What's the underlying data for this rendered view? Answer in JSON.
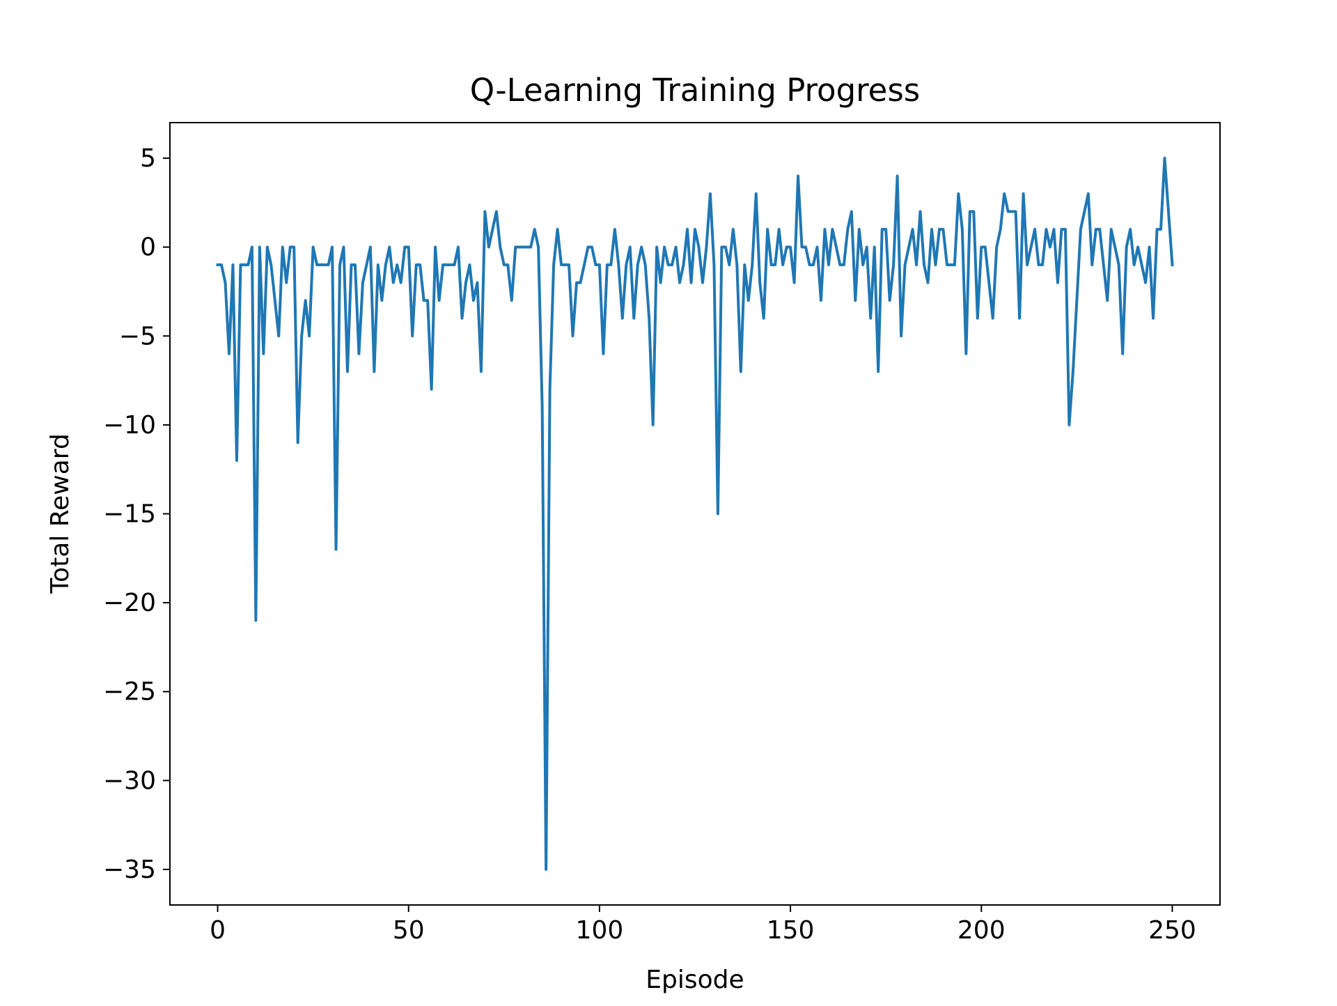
{
  "chart_data": {
    "type": "line",
    "title": "Q-Learning Training Progress",
    "xlabel": "Episode",
    "ylabel": "Total Reward",
    "xlim": [
      -12.5,
      262.5
    ],
    "ylim": [
      -37,
      7
    ],
    "xticks": [
      0,
      50,
      100,
      150,
      200,
      250
    ],
    "xtick_labels": [
      "0",
      "50",
      "100",
      "150",
      "200",
      "250"
    ],
    "yticks": [
      5,
      0,
      -5,
      -10,
      -15,
      -20,
      -25,
      -30,
      -35
    ],
    "ytick_labels": [
      "5",
      "0",
      "−5",
      "−10",
      "−15",
      "−20",
      "−25",
      "−30",
      "−35"
    ],
    "grid": false,
    "legend": "none",
    "series": [
      {
        "color": "#1f77b4",
        "x": [
          0,
          1,
          2,
          3,
          4,
          5,
          6,
          7,
          8,
          9,
          10,
          11,
          12,
          13,
          14,
          15,
          16,
          17,
          18,
          19,
          20,
          21,
          22,
          23,
          24,
          25,
          26,
          27,
          28,
          29,
          30,
          31,
          32,
          33,
          34,
          35,
          36,
          37,
          38,
          39,
          40,
          41,
          42,
          43,
          44,
          45,
          46,
          47,
          48,
          49,
          50,
          51,
          52,
          53,
          54,
          55,
          56,
          57,
          58,
          59,
          60,
          61,
          62,
          63,
          64,
          65,
          66,
          67,
          68,
          69,
          70,
          71,
          72,
          73,
          74,
          75,
          76,
          77,
          78,
          79,
          80,
          81,
          82,
          83,
          84,
          85,
          86,
          87,
          88,
          89,
          90,
          91,
          92,
          93,
          94,
          95,
          96,
          97,
          98,
          99,
          100,
          101,
          102,
          103,
          104,
          105,
          106,
          107,
          108,
          109,
          110,
          111,
          112,
          113,
          114,
          115,
          116,
          117,
          118,
          119,
          120,
          121,
          122,
          123,
          124,
          125,
          126,
          127,
          128,
          129,
          130,
          131,
          132,
          133,
          134,
          135,
          136,
          137,
          138,
          139,
          140,
          141,
          142,
          143,
          144,
          145,
          146,
          147,
          148,
          149,
          150,
          151,
          152,
          153,
          154,
          155,
          156,
          157,
          158,
          159,
          160,
          161,
          162,
          163,
          164,
          165,
          166,
          167,
          168,
          169,
          170,
          171,
          172,
          173,
          174,
          175,
          176,
          177,
          178,
          179,
          180,
          181,
          182,
          183,
          184,
          185,
          186,
          187,
          188,
          189,
          190,
          191,
          192,
          193,
          194,
          195,
          196,
          197,
          198,
          199,
          200,
          201,
          202,
          203,
          204,
          205,
          206,
          207,
          208,
          209,
          210,
          211,
          212,
          213,
          214,
          215,
          216,
          217,
          218,
          219,
          220,
          221,
          222,
          223,
          224,
          225,
          226,
          227,
          228,
          229,
          230,
          231,
          232,
          233,
          234,
          235,
          236,
          237,
          238,
          239,
          240,
          241,
          242,
          243,
          244,
          245,
          246,
          247,
          248,
          249,
          250
        ],
        "y": [
          -1,
          -1,
          -2,
          -6,
          -1,
          -12,
          -1,
          -1,
          -1,
          0,
          -21,
          0,
          -6,
          0,
          -1,
          -3,
          -5,
          0,
          -2,
          0,
          0,
          -11,
          -5,
          -3,
          -5,
          0,
          -1,
          -1,
          -1,
          -1,
          0,
          -17,
          -1,
          0,
          -7,
          -1,
          -1,
          -6,
          -2,
          -1,
          0,
          -7,
          -1,
          -3,
          -1,
          0,
          -2,
          -1,
          -2,
          0,
          0,
          -5,
          -1,
          -1,
          -3,
          -3,
          -8,
          0,
          -3,
          -1,
          -1,
          -1,
          -1,
          0,
          -4,
          -2,
          -1,
          -3,
          -2,
          -7,
          2,
          0,
          1,
          2,
          0,
          -1,
          -1,
          -3,
          0,
          0,
          0,
          0,
          0,
          1,
          0,
          -9,
          -35,
          -8,
          -1,
          1,
          -1,
          -1,
          -1,
          -5,
          -2,
          -2,
          -1,
          0,
          0,
          -1,
          -1,
          -6,
          -1,
          -1,
          1,
          -1,
          -4,
          -1,
          0,
          -4,
          -1,
          0,
          -1,
          -4,
          -10,
          0,
          -2,
          0,
          -1,
          -1,
          0,
          -2,
          -1,
          1,
          -2,
          1,
          0,
          -2,
          0,
          3,
          -1,
          -15,
          0,
          0,
          -1,
          1,
          -1,
          -7,
          -1,
          -3,
          -1,
          3,
          -2,
          -4,
          1,
          -1,
          -1,
          1,
          -1,
          0,
          0,
          -2,
          4,
          0,
          0,
          -1,
          -1,
          0,
          -3,
          1,
          -1,
          1,
          0,
          -1,
          -1,
          1,
          2,
          -3,
          1,
          -1,
          0,
          -4,
          0,
          -7,
          1,
          1,
          -3,
          -1,
          4,
          -5,
          -1,
          0,
          1,
          -1,
          2,
          -1,
          -2,
          1,
          -1,
          1,
          1,
          -1,
          -1,
          -1,
          3,
          1,
          -6,
          2,
          2,
          -4,
          0,
          0,
          -2,
          -4,
          0,
          1,
          3,
          2,
          2,
          2,
          -4,
          3,
          -1,
          0,
          1,
          -1,
          -1,
          1,
          0,
          1,
          -2,
          1,
          1,
          -10,
          -7,
          -3,
          1,
          2,
          3,
          -1,
          1,
          1,
          -1,
          -3,
          1,
          0,
          -1,
          -6,
          0,
          1,
          -1,
          0,
          -1,
          -2,
          0,
          -4,
          1,
          1,
          5,
          2,
          -1
        ]
      }
    ]
  }
}
